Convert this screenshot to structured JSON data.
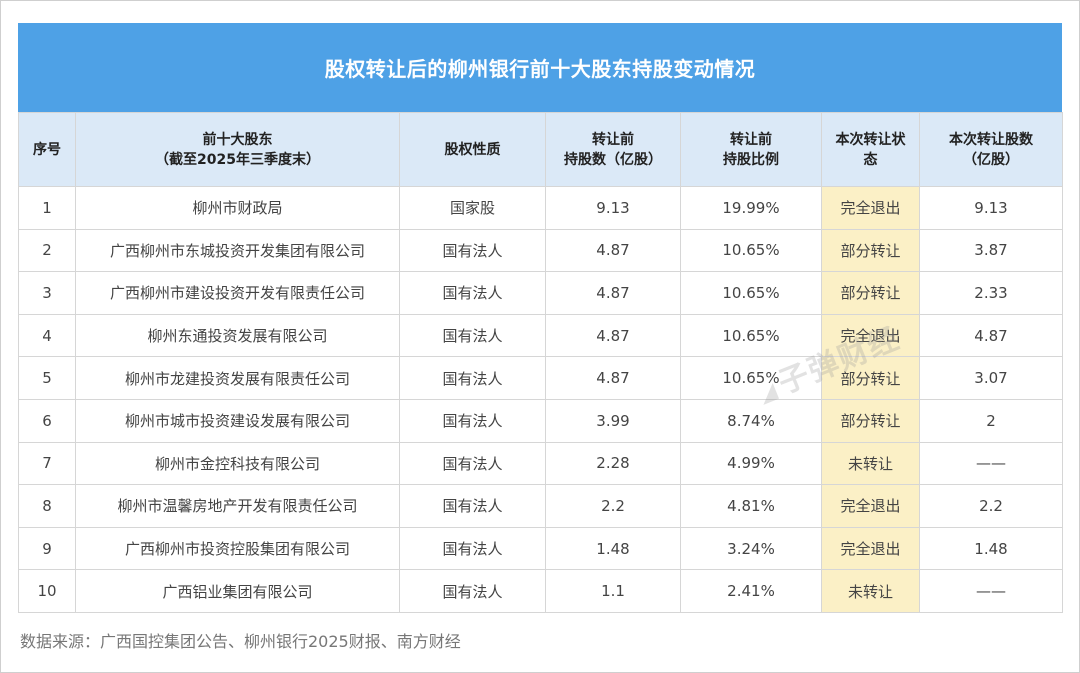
{
  "title": "股权转让后的柳州银行前十大股东持股变动情况",
  "headers": {
    "index": "序号",
    "holder_line1": "前十大股东",
    "holder_line2": "（截至2025年三季度末）",
    "nature": "股权性质",
    "shares_line1": "转让前",
    "shares_line2": "持股数（亿股）",
    "ratio_line1": "转让前",
    "ratio_line2": "持股比例",
    "status_line1": "本次转让状",
    "status_line2": "态",
    "transfer_line1": "本次转让股数",
    "transfer_line2": "（亿股）"
  },
  "rows": [
    {
      "index": "1",
      "holder": "柳州市财政局",
      "nature": "国家股",
      "shares": "9.13",
      "ratio": "19.99%",
      "status": "完全退出",
      "transfer": "9.13"
    },
    {
      "index": "2",
      "holder": "广西柳州市东城投资开发集团有限公司",
      "nature": "国有法人",
      "shares": "4.87",
      "ratio": "10.65%",
      "status": "部分转让",
      "transfer": "3.87"
    },
    {
      "index": "3",
      "holder": "广西柳州市建设投资开发有限责任公司",
      "nature": "国有法人",
      "shares": "4.87",
      "ratio": "10.65%",
      "status": "部分转让",
      "transfer": "2.33"
    },
    {
      "index": "4",
      "holder": "柳州东通投资发展有限公司",
      "nature": "国有法人",
      "shares": "4.87",
      "ratio": "10.65%",
      "status": "完全退出",
      "transfer": "4.87"
    },
    {
      "index": "5",
      "holder": "柳州市龙建投资发展有限责任公司",
      "nature": "国有法人",
      "shares": "4.87",
      "ratio": "10.65%",
      "status": "部分转让",
      "transfer": "3.07"
    },
    {
      "index": "6",
      "holder": "柳州市城市投资建设发展有限公司",
      "nature": "国有法人",
      "shares": "3.99",
      "ratio": "8.74%",
      "status": "部分转让",
      "transfer": "2"
    },
    {
      "index": "7",
      "holder": "柳州市金控科技有限公司",
      "nature": "国有法人",
      "shares": "2.28",
      "ratio": "4.99%",
      "status": "未转让",
      "transfer": "——"
    },
    {
      "index": "8",
      "holder": "柳州市温馨房地产开发有限责任公司",
      "nature": "国有法人",
      "shares": "2.2",
      "ratio": "4.81%",
      "status": "完全退出",
      "transfer": "2.2"
    },
    {
      "index": "9",
      "holder": "广西柳州市投资控股集团有限公司",
      "nature": "国有法人",
      "shares": "1.48",
      "ratio": "3.24%",
      "status": "完全退出",
      "transfer": "1.48"
    },
    {
      "index": "10",
      "holder": "广西铝业集团有限公司",
      "nature": "国有法人",
      "shares": "1.1",
      "ratio": "2.41%",
      "status": "未转让",
      "transfer": "——"
    }
  ],
  "source": "数据来源：广西国控集团公告、柳州银行2025财报、南方财经",
  "watermark": "子弹财经",
  "colors": {
    "title_bg": "#4ea1e6",
    "header_bg": "#dbe9f7",
    "status_bg": "#fbf0c6"
  }
}
